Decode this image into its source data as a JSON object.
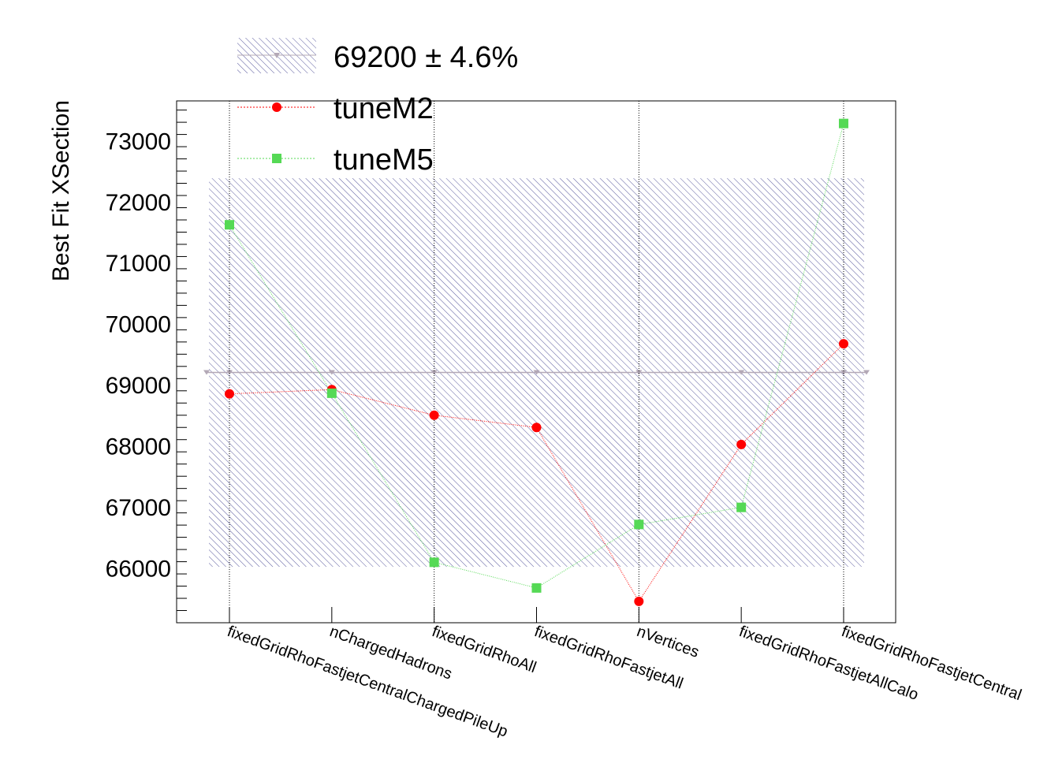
{
  "chart_data": {
    "type": "line",
    "title": "",
    "ylabel": "Best Fit XSection",
    "xlabel": "",
    "ylim": [
      65100,
      73650
    ],
    "y_ticks": [
      "66000",
      "67000",
      "68000",
      "69000",
      "70000",
      "71000",
      "72000",
      "73000"
    ],
    "y_tick_values": [
      66000,
      67000,
      68000,
      69000,
      70000,
      71000,
      72000,
      73000
    ],
    "categories": [
      "fixedGridRhoFastjetCentralChargedPileUp",
      "nChargedHadrons",
      "fixedGridRhoAll",
      "fixedGridRhoFastjetAll",
      "nVertices",
      "fixedGridRhoFastjetAllCalo",
      "fixedGridRhoFastjetCentral"
    ],
    "band": {
      "center": 69200,
      "low": 66016.8,
      "high": 72383.2,
      "legend_label": "69200 ± 4.6%"
    },
    "series": [
      {
        "name": "tuneM2",
        "color": "#ff0000",
        "marker": "circle",
        "values": [
          68850,
          68920,
          68500,
          68300,
          65450,
          68020,
          69670
        ]
      },
      {
        "name": "tuneM5",
        "color": "#55d955",
        "marker": "square",
        "values": [
          71620,
          68860,
          66090,
          65670,
          66710,
          66990,
          73280
        ]
      }
    ],
    "grid": "vertical dotted lines at every other category",
    "legend_position": "top-left"
  },
  "legend": {
    "band_label": "69200 ± 4.6%",
    "m2_label": "tuneM2",
    "m5_label": "tuneM5"
  },
  "colors": {
    "band_hatch": "#5a5a9e",
    "center_line": "#b3a8b6",
    "m2": "#ff0000",
    "m5": "#55d955"
  }
}
